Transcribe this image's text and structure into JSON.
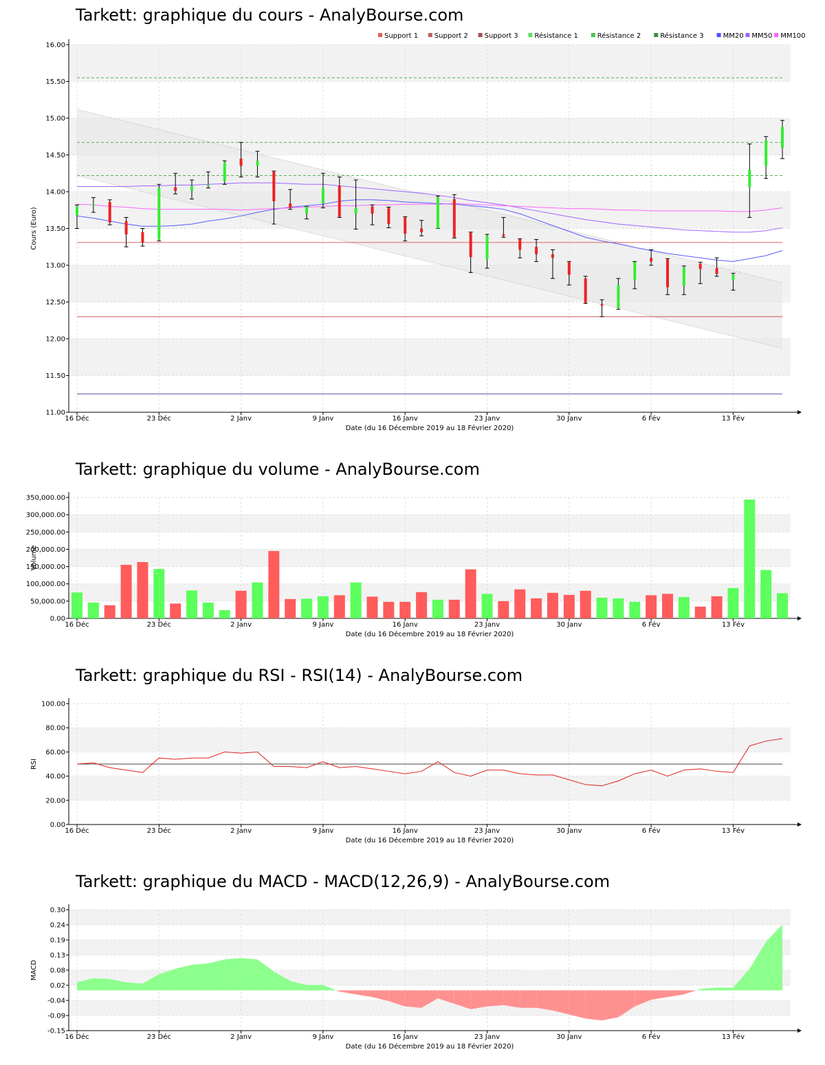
{
  "chart_data": [
    {
      "id": "price",
      "type": "candlestick",
      "title": "Tarkett: graphique du cours - AnalyBourse.com",
      "xlabel": "Date (du 16 Décembre 2019 au 18 Février 2020)",
      "ylabel": "Cours (Euro)",
      "ylim": [
        11.0,
        16.0
      ],
      "yticks": [
        "11.00",
        "11.50",
        "12.00",
        "12.50",
        "13.00",
        "13.50",
        "14.00",
        "14.50",
        "15.00",
        "15.50",
        "16.00"
      ],
      "xticks": [
        {
          "i": 0,
          "label": "16 Déc"
        },
        {
          "i": 5,
          "label": "23 Déc"
        },
        {
          "i": 10,
          "label": "2 Janv"
        },
        {
          "i": 15,
          "label": "9 Janv"
        },
        {
          "i": 20,
          "label": "16 Janv"
        },
        {
          "i": 25,
          "label": "23 Janv"
        },
        {
          "i": 30,
          "label": "30 Janv"
        },
        {
          "i": 35,
          "label": "6 Fév"
        },
        {
          "i": 40,
          "label": "13 Fév"
        }
      ],
      "legend": [
        {
          "name": "Support 1",
          "color": "#e06060"
        },
        {
          "name": "Support 2",
          "color": "#c06060"
        },
        {
          "name": "Support 3",
          "color": "#a05050"
        },
        {
          "name": "Résistance 1",
          "color": "#60e060"
        },
        {
          "name": "Résistance 2",
          "color": "#50c050"
        },
        {
          "name": "Résistance 3",
          "color": "#409040"
        },
        {
          "name": "MM20",
          "color": "#5050ff"
        },
        {
          "name": "MM50",
          "color": "#a060ff"
        },
        {
          "name": "MM100",
          "color": "#ff60ff"
        }
      ],
      "levels": {
        "support": [
          13.31,
          12.3,
          11.25
        ],
        "resistance": [
          14.22,
          14.67,
          15.55
        ]
      },
      "candles": [
        [
          13.68,
          13.8,
          13.5,
          13.82
        ],
        [
          13.83,
          13.83,
          13.72,
          13.92
        ],
        [
          13.86,
          13.58,
          13.55,
          13.89
        ],
        [
          13.6,
          13.42,
          13.25,
          13.65
        ],
        [
          13.45,
          13.31,
          13.26,
          13.5
        ],
        [
          13.35,
          14.05,
          13.33,
          14.1
        ],
        [
          14.06,
          14.01,
          13.97,
          14.25
        ],
        [
          14.01,
          14.08,
          13.9,
          14.16
        ],
        [
          14.1,
          14.1,
          14.05,
          14.27
        ],
        [
          14.14,
          14.4,
          14.1,
          14.42
        ],
        [
          14.45,
          14.35,
          14.2,
          14.67
        ],
        [
          14.35,
          14.42,
          14.2,
          14.55
        ],
        [
          14.27,
          13.87,
          13.56,
          14.28
        ],
        [
          13.84,
          13.78,
          13.76,
          14.03
        ],
        [
          13.7,
          13.8,
          13.63,
          13.8
        ],
        [
          13.84,
          14.05,
          13.78,
          14.25
        ],
        [
          14.08,
          13.66,
          13.65,
          14.2
        ],
        [
          13.7,
          13.78,
          13.49,
          14.16
        ],
        [
          13.8,
          13.7,
          13.55,
          13.82
        ],
        [
          13.78,
          13.56,
          13.51,
          13.79
        ],
        [
          13.65,
          13.43,
          13.33,
          13.66
        ],
        [
          13.5,
          13.45,
          13.4,
          13.61
        ],
        [
          13.5,
          13.92,
          13.5,
          13.94
        ],
        [
          13.9,
          13.38,
          13.37,
          13.96
        ],
        [
          13.44,
          13.11,
          12.9,
          13.45
        ],
        [
          13.08,
          13.4,
          12.96,
          13.42
        ],
        [
          13.42,
          13.4,
          13.38,
          13.65
        ],
        [
          13.35,
          13.21,
          13.1,
          13.36
        ],
        [
          13.25,
          13.15,
          13.05,
          13.35
        ],
        [
          13.15,
          13.1,
          12.82,
          13.21
        ],
        [
          13.04,
          12.87,
          12.73,
          13.05
        ],
        [
          12.82,
          12.49,
          12.48,
          12.85
        ],
        [
          12.47,
          12.45,
          12.3,
          12.53
        ],
        [
          12.42,
          12.73,
          12.4,
          12.82
        ],
        [
          12.8,
          13.04,
          12.68,
          13.05
        ],
        [
          13.1,
          13.05,
          13.0,
          13.21
        ],
        [
          13.08,
          12.7,
          12.6,
          13.09
        ],
        [
          12.72,
          12.97,
          12.6,
          12.99
        ],
        [
          13.02,
          12.95,
          12.75,
          13.04
        ],
        [
          12.96,
          12.88,
          12.85,
          13.1
        ],
        [
          12.8,
          12.87,
          12.66,
          12.89
        ],
        [
          14.06,
          14.3,
          13.65,
          14.65
        ],
        [
          14.35,
          14.7,
          14.18,
          14.75
        ],
        [
          14.6,
          14.88,
          14.45,
          14.97
        ]
      ],
      "mm20": [
        13.67,
        13.64,
        13.6,
        13.56,
        13.53,
        13.53,
        13.54,
        13.56,
        13.6,
        13.63,
        13.67,
        13.72,
        13.76,
        13.79,
        13.81,
        13.83,
        13.87,
        13.89,
        13.89,
        13.88,
        13.86,
        13.85,
        13.84,
        13.83,
        13.81,
        13.79,
        13.76,
        13.7,
        13.62,
        13.54,
        13.46,
        13.38,
        13.33,
        13.29,
        13.24,
        13.2,
        13.16,
        13.13,
        13.1,
        13.07,
        13.05,
        13.09,
        13.13,
        13.2
      ],
      "mm50": [
        14.07,
        14.07,
        14.07,
        14.07,
        14.08,
        14.08,
        14.09,
        14.09,
        14.1,
        14.11,
        14.12,
        14.12,
        14.12,
        14.11,
        14.1,
        14.1,
        14.08,
        14.06,
        14.04,
        14.02,
        14.0,
        13.98,
        13.95,
        13.92,
        13.88,
        13.85,
        13.82,
        13.78,
        13.74,
        13.7,
        13.66,
        13.62,
        13.59,
        13.56,
        13.54,
        13.52,
        13.5,
        13.48,
        13.47,
        13.46,
        13.45,
        13.45,
        13.47,
        13.51
      ],
      "mm100": [
        13.83,
        13.82,
        13.8,
        13.79,
        13.77,
        13.76,
        13.76,
        13.76,
        13.76,
        13.76,
        13.75,
        13.76,
        13.77,
        13.78,
        13.79,
        13.8,
        13.81,
        13.81,
        13.82,
        13.82,
        13.83,
        13.83,
        13.83,
        13.84,
        13.83,
        13.82,
        13.81,
        13.8,
        13.79,
        13.78,
        13.77,
        13.77,
        13.76,
        13.75,
        13.75,
        13.74,
        13.74,
        13.74,
        13.74,
        13.74,
        13.73,
        13.73,
        13.75,
        13.78
      ],
      "trend_upper": [
        [
          0,
          15.12
        ],
        [
          43,
          12.76
        ]
      ],
      "trend_lower": [
        [
          0,
          14.22
        ],
        [
          43,
          11.87
        ]
      ]
    },
    {
      "id": "volume",
      "type": "bar",
      "title": "Tarkett: graphique du volume - AnalyBourse.com",
      "xlabel": "Date (du 16 Décembre 2019 au 18 Février 2020)",
      "ylabel": "Volume",
      "ylim": [
        0,
        350000
      ],
      "yticks": [
        "0.00",
        "50,000.00",
        "100,000.00",
        "150,000.00",
        "200,000.00",
        "250,000.00",
        "300,000.00",
        "350,000.00"
      ],
      "xticks": [
        {
          "i": 0,
          "label": "16 Déc"
        },
        {
          "i": 5,
          "label": "23 Déc"
        },
        {
          "i": 10,
          "label": "2 Janv"
        },
        {
          "i": 15,
          "label": "9 Janv"
        },
        {
          "i": 20,
          "label": "16 Janv"
        },
        {
          "i": 25,
          "label": "23 Janv"
        },
        {
          "i": 30,
          "label": "30 Janv"
        },
        {
          "i": 35,
          "label": "6 Fév"
        },
        {
          "i": 40,
          "label": "13 Fév"
        }
      ],
      "values": [
        75000,
        46000,
        38000,
        155000,
        163000,
        143000,
        43000,
        81000,
        46000,
        24000,
        80000,
        104000,
        195000,
        56000,
        57000,
        64000,
        67000,
        104000,
        63000,
        48000,
        48000,
        76000,
        54000,
        54000,
        142000,
        71000,
        50000,
        84000,
        58000,
        74000,
        68000,
        80000,
        60000,
        58000,
        48000,
        67000,
        71000,
        62000,
        34000,
        64000,
        88000,
        344000,
        140000,
        73000
      ],
      "colors": [
        "g",
        "g",
        "r",
        "r",
        "r",
        "g",
        "r",
        "g",
        "g",
        "g",
        "r",
        "g",
        "r",
        "r",
        "g",
        "g",
        "r",
        "g",
        "r",
        "r",
        "r",
        "r",
        "g",
        "r",
        "r",
        "g",
        "r",
        "r",
        "r",
        "r",
        "r",
        "r",
        "g",
        "g",
        "g",
        "r",
        "r",
        "g",
        "r",
        "r",
        "g",
        "g",
        "g",
        "g"
      ]
    },
    {
      "id": "rsi",
      "type": "line",
      "title": "Tarkett: graphique du RSI - RSI(14) - AnalyBourse.com",
      "xlabel": "Date (du 16 Décembre 2019 au 18 Février 2020)",
      "ylabel": "RSI",
      "ylim": [
        0,
        100
      ],
      "yticks": [
        "0.00",
        "20.00",
        "40.00",
        "60.00",
        "80.00",
        "100.00"
      ],
      "xticks": [
        {
          "i": 0,
          "label": "16 Déc"
        },
        {
          "i": 5,
          "label": "23 Déc"
        },
        {
          "i": 10,
          "label": "2 Janv"
        },
        {
          "i": 15,
          "label": "9 Janv"
        },
        {
          "i": 20,
          "label": "16 Janv"
        },
        {
          "i": 25,
          "label": "23 Janv"
        },
        {
          "i": 30,
          "label": "30 Janv"
        },
        {
          "i": 35,
          "label": "6 Fév"
        },
        {
          "i": 40,
          "label": "13 Fév"
        }
      ],
      "reference": 50,
      "values": [
        50,
        51,
        47,
        45,
        43,
        55,
        54,
        55,
        55,
        60,
        59,
        60,
        48,
        48,
        47,
        52,
        47,
        48,
        46,
        44,
        42,
        44,
        52,
        43,
        40,
        45,
        45,
        42,
        41,
        41,
        37,
        33,
        32,
        36,
        42,
        45,
        40,
        45,
        46,
        44,
        43,
        65,
        69,
        71
      ]
    },
    {
      "id": "macd",
      "type": "area",
      "title": "Tarkett: graphique du MACD - MACD(12,26,9) - AnalyBourse.com",
      "xlabel": "Date (du 16 Décembre 2019 au 18 Février 2020)",
      "ylabel": "MACD",
      "ylim": [
        -0.15,
        0.3
      ],
      "yticks": [
        "-0.15",
        "-0.09",
        "-0.04",
        "0.02",
        "0.08",
        "0.13",
        "0.19",
        "0.24",
        "0.30"
      ],
      "xticks": [
        {
          "i": 0,
          "label": "16 Déc"
        },
        {
          "i": 5,
          "label": "23 Déc"
        },
        {
          "i": 10,
          "label": "2 Janv"
        },
        {
          "i": 15,
          "label": "9 Janv"
        },
        {
          "i": 20,
          "label": "16 Janv"
        },
        {
          "i": 25,
          "label": "23 Janv"
        },
        {
          "i": 30,
          "label": "30 Janv"
        },
        {
          "i": 35,
          "label": "6 Fév"
        },
        {
          "i": 40,
          "label": "13 Fév"
        }
      ],
      "values": [
        0.03,
        0.045,
        0.042,
        0.03,
        0.025,
        0.06,
        0.08,
        0.095,
        0.1,
        0.115,
        0.12,
        0.115,
        0.07,
        0.035,
        0.02,
        0.02,
        -0.005,
        -0.015,
        -0.025,
        -0.04,
        -0.06,
        -0.065,
        -0.03,
        -0.05,
        -0.07,
        -0.06,
        -0.055,
        -0.065,
        -0.065,
        -0.075,
        -0.09,
        -0.105,
        -0.112,
        -0.1,
        -0.06,
        -0.035,
        -0.025,
        -0.015,
        0.005,
        0.01,
        0.01,
        0.08,
        0.18,
        0.245
      ]
    }
  ]
}
